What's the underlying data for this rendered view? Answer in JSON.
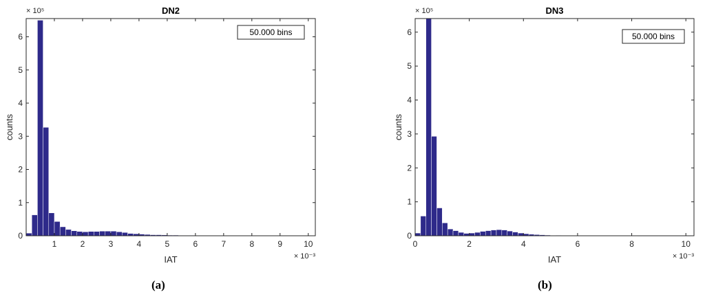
{
  "figure": {
    "captions": [
      "(a)",
      "(b)"
    ]
  },
  "chart_data": [
    {
      "type": "bar",
      "title": "DN2",
      "xlabel": "IAT",
      "ylabel": "counts",
      "x_multiplier": "× 10⁻³",
      "y_multiplier": "× 10⁵",
      "legend_text": "50.000 bins",
      "legend_position": "top-right",
      "xlim": [
        0.0,
        10.25
      ],
      "ylim": [
        0,
        6.55
      ],
      "xticks": [
        1,
        2,
        3,
        4,
        5,
        6,
        7,
        8,
        9,
        10
      ],
      "yticks": [
        0,
        1,
        2,
        3,
        4,
        5,
        6
      ],
      "bar_color": "#2e2a8a",
      "bin_width": 0.2,
      "bin_start": 0.0,
      "values": [
        0.08,
        0.63,
        6.5,
        3.27,
        0.69,
        0.43,
        0.27,
        0.19,
        0.15,
        0.13,
        0.12,
        0.13,
        0.13,
        0.14,
        0.14,
        0.14,
        0.12,
        0.1,
        0.07,
        0.06,
        0.05,
        0.04,
        0.03,
        0.03,
        0.025,
        0.02,
        0.02,
        0.015,
        0.015,
        0.012,
        0.01,
        0.01,
        0.01,
        0.008,
        0.008,
        0.007,
        0.006,
        0.006,
        0.005,
        0.005,
        0.005,
        0.004,
        0.004,
        0.004,
        0.003,
        0.003,
        0.003,
        0.003,
        0.002,
        0.002,
        0.002
      ]
    },
    {
      "type": "bar",
      "title": "DN3",
      "xlabel": "IAT",
      "ylabel": "counts",
      "x_multiplier": "× 10⁻³",
      "y_multiplier": "× 10⁵",
      "legend_text": "50.000 bins",
      "legend_position": "top-right",
      "xlim": [
        0,
        10.3
      ],
      "ylim": [
        0,
        6.4
      ],
      "xticks": [
        0,
        2,
        4,
        6,
        8,
        10
      ],
      "yticks": [
        0,
        1,
        2,
        3,
        4,
        5,
        6
      ],
      "bar_color": "#2e2a8a",
      "bin_width": 0.2,
      "bin_start": 0.0,
      "values": [
        0.08,
        0.58,
        6.4,
        2.93,
        0.82,
        0.38,
        0.2,
        0.15,
        0.1,
        0.07,
        0.08,
        0.1,
        0.13,
        0.15,
        0.17,
        0.18,
        0.17,
        0.14,
        0.11,
        0.08,
        0.06,
        0.045,
        0.035,
        0.028,
        0.02,
        0.015,
        0.012,
        0.01,
        0.008,
        0.006,
        0.005,
        0.004,
        0.004,
        0.003,
        0.003,
        0.003,
        0.002,
        0.002,
        0.002,
        0.002,
        0.002,
        0.001,
        0.001,
        0.001,
        0.001,
        0.001,
        0.001,
        0.001,
        0.001,
        0.001,
        0.001
      ]
    }
  ]
}
